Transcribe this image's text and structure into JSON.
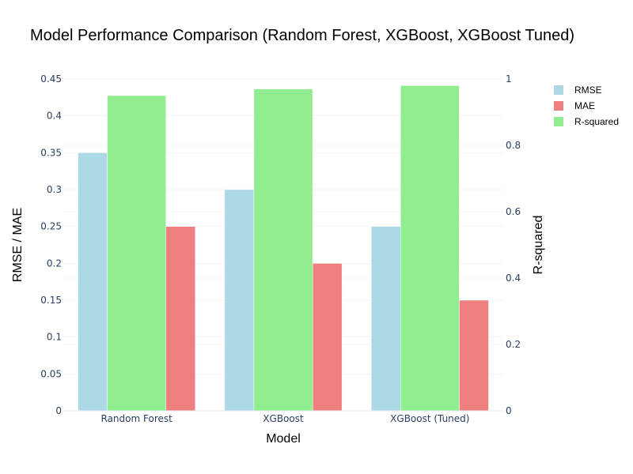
{
  "chart_data": {
    "type": "bar",
    "title": "Model Performance Comparison (Random Forest, XGBoost, XGBoost Tuned)",
    "xlabel": "Model",
    "ylabel": "RMSE / MAE",
    "y2label": "R-squared",
    "categories": [
      "Random Forest",
      "XGBoost",
      "XGBoost (Tuned)"
    ],
    "ylim": [
      0,
      0.45
    ],
    "y2lim": [
      0,
      1
    ],
    "yticks": [
      "0",
      "0.05",
      "0.1",
      "0.15",
      "0.2",
      "0.25",
      "0.3",
      "0.35",
      "0.4",
      "0.45"
    ],
    "y2ticks": [
      "0",
      "0.2",
      "0.4",
      "0.6",
      "0.8",
      "1"
    ],
    "grid": true,
    "legend_position": "top-right",
    "series": [
      {
        "name": "RMSE",
        "axis": "left",
        "color": "#add8e6",
        "values": [
          0.35,
          0.3,
          0.25
        ]
      },
      {
        "name": "MAE",
        "axis": "left",
        "color": "#f08080",
        "values": [
          0.25,
          0.2,
          0.15
        ]
      },
      {
        "name": "R-squared",
        "axis": "right",
        "color": "#90ee90",
        "values": [
          0.95,
          0.97,
          0.98
        ]
      }
    ]
  }
}
